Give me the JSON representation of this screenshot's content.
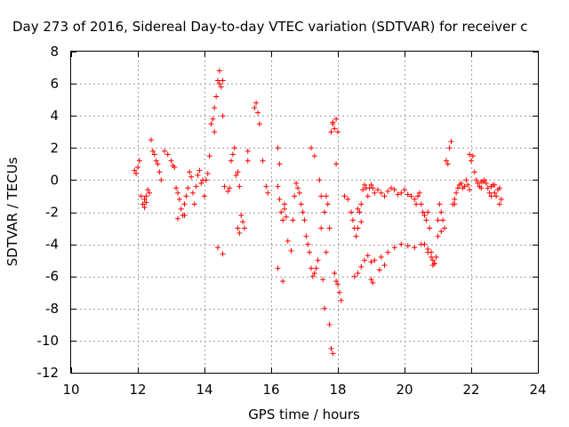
{
  "chart_data": {
    "type": "scatter",
    "title": "Day 273 of 2016, Sidereal Day-to-day VTEC variation (SDTVAR) for receiver c",
    "xlabel": "GPS time / hours",
    "ylabel": "SDTVAR / TECUs",
    "xlim": [
      10,
      24
    ],
    "ylim": [
      -12,
      8
    ],
    "xticks": [
      "10",
      "12",
      "14",
      "16",
      "18",
      "20",
      "22",
      "24"
    ],
    "yticks": [
      "8",
      "6",
      "4",
      "2",
      "0",
      "-2",
      "-4",
      "-6",
      "-8",
      "-10",
      "-12"
    ],
    "grid": true,
    "marker": "plus",
    "color": "#ff0000",
    "series": [
      {
        "name": "",
        "x": [
          11.9,
          11.95,
          12.0,
          12.05,
          12.1,
          12.15,
          12.2,
          12.25,
          12.3,
          12.35,
          12.4,
          12.45,
          12.5,
          12.55,
          12.6,
          12.65,
          12.7,
          12.8,
          12.9,
          13.0,
          13.05,
          13.1,
          13.15,
          13.2,
          13.25,
          13.3,
          13.35,
          13.4,
          13.45,
          13.5,
          13.55,
          13.6,
          13.65,
          13.7,
          13.75,
          13.8,
          13.85,
          13.9,
          13.95,
          14.0,
          14.05,
          14.1,
          14.15,
          14.2,
          14.25,
          14.3,
          14.35,
          14.4,
          14.45,
          14.5,
          14.55,
          14.6,
          14.7,
          14.75,
          14.8,
          14.85,
          14.9,
          14.95,
          15.0,
          15.05,
          15.1,
          15.15,
          15.2,
          15.3,
          15.5,
          15.55,
          15.6,
          15.65,
          15.75,
          15.85,
          15.9,
          16.2,
          16.25,
          16.3,
          16.35,
          16.4,
          16.5,
          16.6,
          16.65,
          16.7,
          16.75,
          16.8,
          16.85,
          16.9,
          16.95,
          17.0,
          17.05,
          17.1,
          17.15,
          17.2,
          17.25,
          17.3,
          17.35,
          17.4,
          17.5,
          17.6,
          17.65,
          17.7,
          17.75,
          17.8,
          17.85,
          17.9,
          17.95,
          18.0,
          18.05,
          18.1,
          18.2,
          18.3,
          18.4,
          18.45,
          18.5,
          18.55,
          18.6,
          18.65,
          18.7,
          18.75,
          18.8,
          18.85,
          18.9,
          18.95,
          19.0,
          19.05,
          19.1,
          19.2,
          19.3,
          19.4,
          19.5,
          19.6,
          19.7,
          19.8,
          19.9,
          20.0,
          20.1,
          20.2,
          20.3,
          20.35,
          20.4,
          20.45,
          20.5,
          20.55,
          20.6,
          20.65,
          20.7,
          20.75,
          20.8,
          20.85,
          20.9,
          20.95,
          21.0,
          21.05,
          21.1,
          21.15,
          21.2,
          21.25,
          21.3,
          21.35,
          21.4,
          21.45,
          21.5,
          21.55,
          21.6,
          21.65,
          21.7,
          21.75,
          21.8,
          21.85,
          21.9,
          21.95,
          22.0,
          22.05,
          22.1,
          22.15,
          22.2,
          22.25,
          22.3,
          22.35,
          22.4,
          22.45,
          22.5,
          22.55,
          22.6,
          22.65,
          22.7,
          22.75,
          22.8,
          22.85,
          22.9,
          14.3,
          14.45,
          14.55,
          18.5,
          18.6,
          18.7,
          18.8,
          18.9,
          19.0,
          19.1,
          19.3,
          19.5,
          19.7,
          19.9,
          20.1,
          20.3,
          20.5,
          20.7,
          20.9,
          17.8,
          17.85,
          17.75,
          17.6,
          17.5,
          17.45,
          17.3,
          17.2,
          16.35,
          16.2,
          17.85,
          17.95,
          18.0,
          16.2,
          16.25,
          15.3,
          14.4,
          14.55,
          15.0,
          15.05,
          13.2,
          13.4,
          12.2,
          12.25,
          20.6,
          20.7,
          20.8,
          20.85,
          21.0,
          21.5,
          21.1,
          17.55,
          17.65,
          17.9,
          17.95,
          18.6,
          18.7,
          19.0,
          19.05,
          19.25,
          19.4,
          21.95,
          22.3,
          22.7,
          22.85,
          22.6,
          16.4,
          16.45
        ],
        "y": [
          0.6,
          0.4,
          0.8,
          1.2,
          -1.0,
          -1.5,
          -1.2,
          -1.0,
          -0.6,
          -0.8,
          2.5,
          1.8,
          1.6,
          1.2,
          1.0,
          0.5,
          0.0,
          1.8,
          1.6,
          1.2,
          0.9,
          0.8,
          -0.5,
          -0.8,
          -1.2,
          -1.8,
          -2.2,
          -1.5,
          -1.0,
          -0.5,
          0.5,
          0.2,
          -0.8,
          -1.5,
          -0.4,
          0.3,
          0.6,
          -0.2,
          0.0,
          -1.0,
          0.0,
          0.4,
          1.5,
          3.5,
          3.8,
          4.5,
          5.2,
          6.2,
          6.8,
          5.8,
          4.0,
          -0.4,
          -0.7,
          -0.5,
          1.2,
          1.6,
          2.0,
          0.3,
          0.5,
          -0.4,
          -2.2,
          -2.6,
          -3.0,
          1.2,
          4.5,
          4.8,
          4.2,
          3.5,
          1.2,
          -0.4,
          -0.8,
          -0.4,
          -1.2,
          -2.0,
          -2.5,
          -1.5,
          -3.8,
          -4.4,
          -2.5,
          -1.0,
          -0.2,
          -0.5,
          -0.8,
          -1.5,
          -2.0,
          -2.5,
          -3.5,
          -4.0,
          -4.5,
          -5.5,
          -6.0,
          -5.8,
          -5.5,
          -5.0,
          -1.0,
          -2.0,
          -1.0,
          -1.5,
          -3.0,
          3.0,
          3.5,
          3.2,
          1.0,
          -6.5,
          -7.0,
          -7.5,
          -1.0,
          -1.2,
          -2.0,
          -2.5,
          -3.0,
          -3.5,
          -3.0,
          -2.0,
          -1.5,
          -0.6,
          -0.3,
          -0.5,
          -1.0,
          -0.5,
          -0.3,
          -0.5,
          -0.8,
          -0.6,
          -0.8,
          -1.0,
          -0.7,
          -0.5,
          -0.6,
          -0.9,
          -0.8,
          -0.6,
          -0.9,
          -1.0,
          -1.2,
          -1.5,
          -1.0,
          -0.8,
          -1.5,
          -2.0,
          -2.2,
          -2.5,
          -2.0,
          -3.0,
          -4.5,
          -5.0,
          -5.2,
          -4.8,
          -2.5,
          -1.5,
          -2.0,
          -2.5,
          -3.0,
          1.2,
          1.0,
          2.0,
          2.4,
          -1.5,
          -1.2,
          -0.8,
          -0.5,
          -0.3,
          -0.2,
          -0.5,
          -0.4,
          0.0,
          -0.3,
          -0.6,
          1.2,
          1.5,
          0.5,
          0.0,
          -0.2,
          -0.4,
          -0.5,
          -0.1,
          0.0,
          -0.2,
          -0.5,
          -0.8,
          -0.4,
          -0.3,
          -0.8,
          -1.0,
          -0.6,
          -0.5,
          -1.2,
          3.0,
          6.0,
          6.2,
          -6.0,
          -5.8,
          -5.4,
          -5.0,
          -4.7,
          -5.1,
          -5.0,
          -4.8,
          -4.5,
          -4.2,
          -4.0,
          -4.1,
          -4.2,
          -4.0,
          -4.5,
          -5.2,
          -10.5,
          -10.8,
          -9.0,
          -8.0,
          -3.0,
          0.0,
          1.5,
          2.0,
          -6.3,
          -5.5,
          3.6,
          3.8,
          3.0,
          2.0,
          1.0,
          1.8,
          -4.2,
          -4.6,
          -3.0,
          -3.3,
          -2.4,
          -2.2,
          -1.7,
          -1.4,
          -4.0,
          -4.3,
          -4.8,
          -5.3,
          -3.5,
          -1.5,
          -3.2,
          -6.2,
          -4.5,
          -5.8,
          -6.3,
          -1.8,
          -2.6,
          -6.2,
          -6.4,
          -5.6,
          -5.3,
          1.6,
          -0.1,
          -0.3,
          -1.5,
          -1.0,
          -1.8,
          -2.3
        ]
      }
    ]
  }
}
